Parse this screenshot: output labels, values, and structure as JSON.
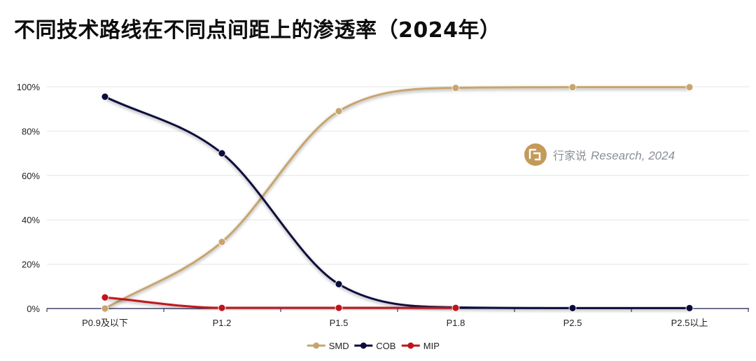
{
  "title": "不同技术路线在不同点间距上的渗透率（2024年）",
  "watermark": {
    "prefix": "行家说",
    "suffix": "Research, 2024",
    "icon": "speech-bubble-logo-icon",
    "icon_color": "#c49a5a"
  },
  "chart_data": {
    "type": "line",
    "smooth": true,
    "categories": [
      "P0.9及以下",
      "P1.2",
      "P1.5",
      "P1.8",
      "P2.5",
      "P2.5以上"
    ],
    "series": [
      {
        "name": "SMD",
        "color": "#c8a46e",
        "values": [
          0,
          30,
          89,
          99.5,
          99.8,
          99.8
        ]
      },
      {
        "name": "COB",
        "color": "#0b0b3d",
        "values": [
          95.5,
          70,
          11,
          0.5,
          0.2,
          0.2
        ]
      },
      {
        "name": "MIP",
        "color": "#c0141a",
        "values": [
          5,
          0.3,
          0.3,
          0.3,
          null,
          null
        ]
      }
    ],
    "y_ticks": [
      "0%",
      "20%",
      "40%",
      "60%",
      "80%",
      "100%"
    ],
    "ylim": [
      0,
      100
    ],
    "grid": true,
    "legend_position": "bottom-center"
  }
}
